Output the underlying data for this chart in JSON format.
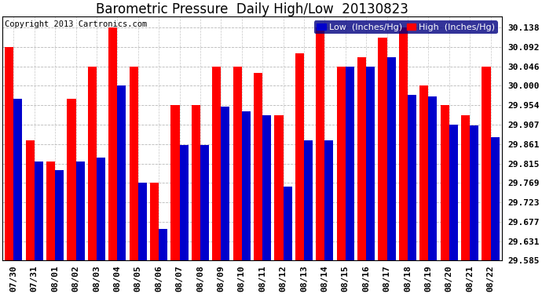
{
  "title": "Barometric Pressure  Daily High/Low  20130823",
  "copyright": "Copyright 2013 Cartronics.com",
  "legend_low": "Low  (Inches/Hg)",
  "legend_high": "High  (Inches/Hg)",
  "dates": [
    "07/30",
    "07/31",
    "08/01",
    "08/02",
    "08/03",
    "08/04",
    "08/05",
    "08/06",
    "08/07",
    "08/08",
    "08/09",
    "08/10",
    "08/11",
    "08/12",
    "08/13",
    "08/14",
    "08/15",
    "08/16",
    "08/17",
    "08/18",
    "08/19",
    "08/20",
    "08/21",
    "08/22"
  ],
  "high": [
    30.092,
    29.87,
    29.82,
    29.97,
    30.046,
    30.138,
    30.046,
    29.77,
    29.954,
    29.954,
    30.046,
    30.046,
    30.03,
    29.93,
    30.078,
    30.138,
    30.046,
    30.068,
    30.115,
    30.138,
    30.0,
    29.954,
    29.93,
    30.046
  ],
  "low": [
    29.97,
    29.82,
    29.8,
    29.82,
    29.83,
    30.0,
    29.77,
    29.66,
    29.86,
    29.86,
    29.95,
    29.94,
    29.93,
    29.76,
    29.87,
    29.87,
    30.046,
    30.046,
    30.068,
    29.978,
    29.975,
    29.908,
    29.905,
    29.878
  ],
  "bar_width": 0.42,
  "ylim_min": 29.585,
  "ylim_max": 30.165,
  "yticks": [
    29.585,
    29.631,
    29.677,
    29.723,
    29.769,
    29.815,
    29.861,
    29.907,
    29.954,
    30.0,
    30.046,
    30.092,
    30.138
  ],
  "color_high": "#ff0000",
  "color_low": "#0000cc",
  "bg_color": "#ffffff",
  "grid_color": "#b0b0b0",
  "title_fontsize": 12,
  "tick_fontsize": 8,
  "legend_fontsize": 8,
  "copyright_fontsize": 7.5
}
